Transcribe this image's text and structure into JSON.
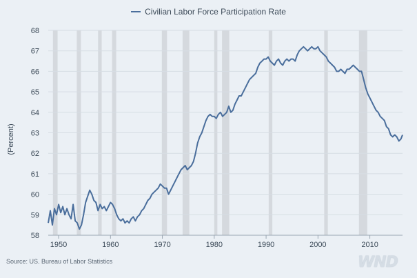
{
  "legend": {
    "label": "Civilian Labor Force Participation Rate",
    "color": "#4a6e9c"
  },
  "source": "Source: US. Bureau of Labor Statistics",
  "logo": "WND",
  "colors": {
    "line": "#4a6e9c",
    "recession": "#d5d9de",
    "grid": "#d6dde4",
    "background": "#ebf0f5"
  },
  "chart_data": {
    "type": "line",
    "title": "",
    "xlabel": "",
    "ylabel": "(Percent)",
    "xlim": [
      1948,
      2016.3
    ],
    "ylim": [
      58,
      68
    ],
    "x_ticks": [
      1950,
      1960,
      1970,
      1980,
      1990,
      2000,
      2010
    ],
    "y_ticks": [
      58,
      59,
      60,
      61,
      62,
      63,
      64,
      65,
      66,
      67,
      68
    ],
    "grid": "horizontal",
    "legend_position": "top-center",
    "recessions": [
      [
        1948.9,
        1949.8
      ],
      [
        1953.5,
        1954.3
      ],
      [
        1957.6,
        1958.3
      ],
      [
        1960.3,
        1961.1
      ],
      [
        1969.9,
        1970.9
      ],
      [
        1973.9,
        1975.2
      ],
      [
        1980.0,
        1980.6
      ],
      [
        1981.5,
        1982.9
      ],
      [
        1990.5,
        1991.2
      ],
      [
        2001.2,
        2001.9
      ],
      [
        2007.9,
        2009.5
      ]
    ],
    "series": [
      {
        "name": "Civilian Labor Force Participation Rate",
        "x": [
          1948.0,
          1948.4,
          1948.8,
          1949.2,
          1949.6,
          1950.0,
          1950.4,
          1950.8,
          1951.2,
          1951.6,
          1952.0,
          1952.4,
          1952.8,
          1953.2,
          1953.6,
          1954.0,
          1954.4,
          1954.8,
          1955.2,
          1955.6,
          1956.0,
          1956.4,
          1956.8,
          1957.2,
          1957.6,
          1958.0,
          1958.4,
          1958.8,
          1959.2,
          1959.6,
          1960.0,
          1960.4,
          1960.8,
          1961.2,
          1961.6,
          1962.0,
          1962.4,
          1962.8,
          1963.2,
          1963.6,
          1964.0,
          1964.4,
          1964.8,
          1965.2,
          1965.6,
          1966.0,
          1966.4,
          1966.8,
          1967.2,
          1967.6,
          1968.0,
          1968.4,
          1968.8,
          1969.2,
          1969.6,
          1970.0,
          1970.4,
          1970.8,
          1971.2,
          1971.6,
          1972.0,
          1972.4,
          1972.8,
          1973.2,
          1973.6,
          1974.0,
          1974.4,
          1974.8,
          1975.2,
          1975.6,
          1976.0,
          1976.4,
          1976.8,
          1977.2,
          1977.6,
          1978.0,
          1978.4,
          1978.8,
          1979.2,
          1979.6,
          1980.0,
          1980.4,
          1980.8,
          1981.2,
          1981.6,
          1982.0,
          1982.4,
          1982.8,
          1983.2,
          1983.6,
          1984.0,
          1984.4,
          1984.8,
          1985.2,
          1985.6,
          1986.0,
          1986.4,
          1986.8,
          1987.2,
          1987.6,
          1988.0,
          1988.4,
          1988.8,
          1989.2,
          1989.6,
          1990.0,
          1990.4,
          1990.8,
          1991.2,
          1991.6,
          1992.0,
          1992.4,
          1992.8,
          1993.2,
          1993.6,
          1994.0,
          1994.4,
          1994.8,
          1995.2,
          1995.6,
          1996.0,
          1996.4,
          1996.8,
          1997.2,
          1997.6,
          1998.0,
          1998.4,
          1998.8,
          1999.2,
          1999.6,
          2000.0,
          2000.4,
          2000.8,
          2001.2,
          2001.6,
          2002.0,
          2002.4,
          2002.8,
          2003.2,
          2003.6,
          2004.0,
          2004.4,
          2004.8,
          2005.2,
          2005.6,
          2006.0,
          2006.4,
          2006.8,
          2007.2,
          2007.6,
          2008.0,
          2008.4,
          2008.8,
          2009.2,
          2009.6,
          2010.0,
          2010.4,
          2010.8,
          2011.2,
          2011.6,
          2012.0,
          2012.4,
          2012.8,
          2013.2,
          2013.6,
          2014.0,
          2014.4,
          2014.8,
          2015.2,
          2015.6,
          2016.0,
          2016.3
        ],
        "y": [
          58.6,
          59.2,
          58.5,
          59.3,
          59.0,
          59.5,
          59.1,
          59.4,
          59.0,
          59.3,
          59.0,
          58.8,
          59.5,
          58.7,
          58.6,
          58.3,
          58.5,
          59.0,
          59.6,
          59.9,
          60.2,
          60.0,
          59.7,
          59.6,
          59.2,
          59.5,
          59.3,
          59.4,
          59.2,
          59.4,
          59.6,
          59.5,
          59.3,
          59.0,
          58.8,
          58.7,
          58.8,
          58.6,
          58.7,
          58.6,
          58.8,
          58.9,
          58.7,
          58.9,
          59.0,
          59.2,
          59.3,
          59.5,
          59.7,
          59.8,
          60.0,
          60.1,
          60.2,
          60.3,
          60.5,
          60.4,
          60.3,
          60.3,
          60.0,
          60.2,
          60.4,
          60.6,
          60.8,
          61.0,
          61.2,
          61.3,
          61.4,
          61.2,
          61.3,
          61.4,
          61.6,
          62.0,
          62.5,
          62.8,
          63.0,
          63.3,
          63.6,
          63.8,
          63.9,
          63.8,
          63.8,
          63.7,
          63.9,
          64.0,
          63.8,
          63.9,
          64.0,
          64.3,
          64.0,
          64.1,
          64.4,
          64.6,
          64.8,
          64.8,
          65.0,
          65.2,
          65.4,
          65.6,
          65.7,
          65.8,
          65.9,
          66.2,
          66.4,
          66.5,
          66.6,
          66.6,
          66.7,
          66.5,
          66.4,
          66.3,
          66.5,
          66.6,
          66.4,
          66.3,
          66.5,
          66.6,
          66.5,
          66.6,
          66.6,
          66.5,
          66.8,
          67.0,
          67.1,
          67.2,
          67.1,
          67.0,
          67.1,
          67.2,
          67.1,
          67.1,
          67.2,
          67.0,
          66.9,
          66.8,
          66.7,
          66.5,
          66.4,
          66.3,
          66.2,
          66.0,
          66.0,
          66.1,
          66.0,
          65.9,
          66.1,
          66.1,
          66.2,
          66.3,
          66.2,
          66.1,
          66.0,
          66.0,
          65.6,
          65.2,
          64.9,
          64.7,
          64.5,
          64.3,
          64.1,
          64.0,
          63.8,
          63.7,
          63.6,
          63.3,
          63.2,
          62.9,
          62.8,
          62.9,
          62.8,
          62.6,
          62.7,
          62.9
        ]
      }
    ]
  }
}
